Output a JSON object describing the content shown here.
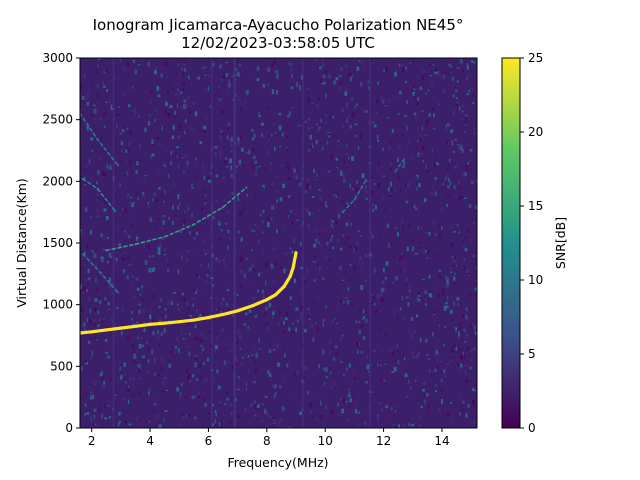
{
  "chart_data": {
    "type": "heatmap",
    "title": "Ionogram Jicamarca-Ayacucho Polarization NE45°",
    "subtitle": "12/02/2023-03:58:05 UTC",
    "xlabel": "Frequency(MHz)",
    "ylabel": "Virtual Distance(Km)",
    "xlim": [
      1.6,
      15.2
    ],
    "ylim": [
      0,
      3000
    ],
    "xticks": [
      "2",
      "4",
      "6",
      "8",
      "10",
      "12",
      "14"
    ],
    "yticks": [
      "0",
      "500",
      "1000",
      "1500",
      "2000",
      "2500",
      "3000"
    ],
    "colorbar": {
      "label": "SNR[dB]",
      "range": [
        0,
        25
      ],
      "ticks": [
        "0",
        "5",
        "10",
        "15",
        "20",
        "25"
      ],
      "colormap": [
        "#440154",
        "#3b528b",
        "#21918c",
        "#5ec962",
        "#fde725"
      ]
    },
    "background_color": "#3b1f6b",
    "traces": [
      {
        "name": "",
        "snr": 25,
        "points": [
          [
            1.6,
            770
          ],
          [
            2.0,
            780
          ],
          [
            2.5,
            795
          ],
          [
            3.0,
            810
          ],
          [
            3.5,
            825
          ],
          [
            4.0,
            840
          ],
          [
            4.5,
            850
          ],
          [
            5.0,
            862
          ],
          [
            5.5,
            875
          ],
          [
            6.0,
            895
          ],
          [
            6.5,
            920
          ],
          [
            7.0,
            950
          ],
          [
            7.5,
            990
          ],
          [
            8.0,
            1040
          ],
          [
            8.3,
            1080
          ],
          [
            8.6,
            1150
          ],
          [
            8.8,
            1230
          ],
          [
            8.9,
            1300
          ],
          [
            9.0,
            1420
          ]
        ]
      },
      {
        "name": "",
        "snr": 14,
        "points": [
          [
            2.5,
            1440
          ],
          [
            3.5,
            1490
          ],
          [
            4.5,
            1550
          ],
          [
            5.5,
            1650
          ],
          [
            6.5,
            1790
          ],
          [
            7.3,
            1950
          ]
        ]
      },
      {
        "name": "",
        "snr": 12,
        "points": [
          [
            1.7,
            2020
          ],
          [
            2.2,
            1940
          ],
          [
            2.8,
            1760
          ]
        ]
      },
      {
        "name": "",
        "snr": 10,
        "points": [
          [
            1.7,
            1410
          ],
          [
            2.3,
            1260
          ],
          [
            2.9,
            1100
          ]
        ]
      },
      {
        "name": "",
        "snr": 10,
        "points": [
          [
            1.6,
            2550
          ],
          [
            2.2,
            2340
          ],
          [
            2.9,
            2130
          ]
        ]
      },
      {
        "name": "",
        "snr": 10,
        "points": [
          [
            10.6,
            1750
          ],
          [
            11.0,
            1850
          ],
          [
            11.4,
            2010
          ]
        ]
      },
      {
        "name": "",
        "snr": 8,
        "points": [
          [
            12.4,
            2080
          ],
          [
            12.7,
            2180
          ]
        ]
      }
    ]
  }
}
